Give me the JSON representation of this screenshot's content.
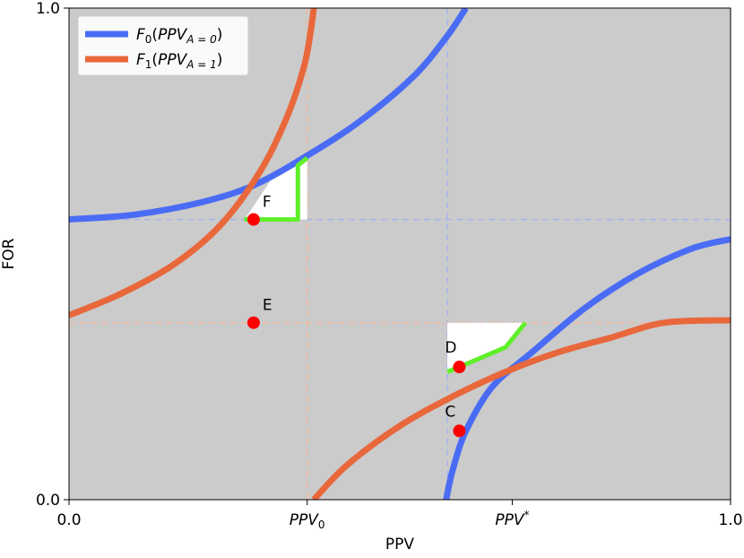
{
  "chart_data": {
    "type": "line",
    "xlabel": "PPV",
    "ylabel": "FOR",
    "xlim": [
      0,
      1
    ],
    "ylim": [
      0,
      1
    ],
    "grid": false,
    "legend_position": "top-left",
    "x_ticks": [
      {
        "value": 0.0,
        "label": "0.0"
      },
      {
        "value": 0.36,
        "label": "PPV",
        "sub": "0"
      },
      {
        "value": 0.67,
        "label": "PPV",
        "sup": "*"
      },
      {
        "value": 1.0,
        "label": "1.0"
      }
    ],
    "y_ticks": [
      {
        "value": 0.0,
        "label": "0.0"
      },
      {
        "value": 1.0,
        "label": "1.0"
      }
    ],
    "colors": {
      "background": "#cbcbcb",
      "f0": "#4a6cf5",
      "f1": "#e8683c",
      "highlight": "#5ff02a",
      "point": "#ff0000",
      "region": "#ffffff"
    },
    "series": [
      {
        "key": "F0",
        "legend": {
          "main": "F",
          "sub0": "0",
          "arg": "PPV",
          "argsub": "A = 0"
        },
        "color": "#4a6cf5",
        "branches": [
          {
            "x": [
              0.0,
              0.1,
              0.2,
              0.28,
              0.36,
              0.44,
              0.52,
              0.57,
              0.6
            ],
            "y": [
              0.57,
              0.58,
              0.605,
              0.64,
              0.7,
              0.77,
              0.86,
              0.94,
              1.0
            ]
          },
          {
            "x": [
              0.57,
              0.58,
              0.6,
              0.64,
              0.7,
              0.78,
              0.86,
              0.94,
              1.0
            ],
            "y": [
              0.0,
              0.06,
              0.14,
              0.23,
              0.3,
              0.39,
              0.46,
              0.51,
              0.53
            ]
          }
        ]
      },
      {
        "key": "F1",
        "legend": {
          "main": "F",
          "sub0": "1",
          "arg": "PPV",
          "argsub": "A = 1"
        },
        "color": "#e8683c",
        "branches": [
          {
            "x": [
              0.0,
              0.08,
              0.16,
              0.23,
              0.29,
              0.33,
              0.355,
              0.365,
              0.37
            ],
            "y": [
              0.375,
              0.42,
              0.48,
              0.56,
              0.67,
              0.78,
              0.88,
              0.95,
              1.0
            ]
          },
          {
            "x": [
              0.37,
              0.42,
              0.5,
              0.58,
              0.66,
              0.74,
              0.82,
              0.9,
              1.0
            ],
            "y": [
              0.0,
              0.07,
              0.15,
              0.21,
              0.26,
              0.3,
              0.33,
              0.36,
              0.365
            ]
          }
        ]
      }
    ],
    "reference_lines": [
      {
        "orientation": "vertical",
        "value": 0.36,
        "color": "#f0b99f"
      },
      {
        "orientation": "vertical",
        "value": 0.572,
        "color": "#a7b4ee"
      },
      {
        "orientation": "horizontal",
        "value": 0.57,
        "color": "#a7b4ee"
      },
      {
        "orientation": "horizontal",
        "value": 0.36,
        "color": "#f0b99f"
      }
    ],
    "highlight_regions": [
      {
        "name": "region-f",
        "polygon": [
          [
            0.268,
            0.57
          ],
          [
            0.36,
            0.57
          ],
          [
            0.36,
            0.695
          ],
          [
            0.346,
            0.68
          ],
          [
            0.305,
            0.65
          ],
          [
            0.268,
            0.575
          ]
        ],
        "green_path": [
          [
            0.268,
            0.575
          ],
          [
            0.268,
            0.57
          ],
          [
            0.346,
            0.57
          ],
          [
            0.346,
            0.68
          ],
          [
            0.36,
            0.695
          ]
        ]
      },
      {
        "name": "region-d",
        "polygon": [
          [
            0.572,
            0.36
          ],
          [
            0.69,
            0.36
          ],
          [
            0.66,
            0.31
          ],
          [
            0.62,
            0.285
          ],
          [
            0.572,
            0.26
          ]
        ],
        "green_path": [
          [
            0.572,
            0.26
          ],
          [
            0.62,
            0.287
          ],
          [
            0.66,
            0.31
          ],
          [
            0.69,
            0.36
          ]
        ]
      }
    ],
    "points": [
      {
        "label": "F",
        "x": 0.279,
        "y": 0.57
      },
      {
        "label": "E",
        "x": 0.279,
        "y": 0.36
      },
      {
        "label": "D",
        "x": 0.59,
        "y": 0.27
      },
      {
        "label": "C",
        "x": 0.59,
        "y": 0.14
      }
    ]
  }
}
